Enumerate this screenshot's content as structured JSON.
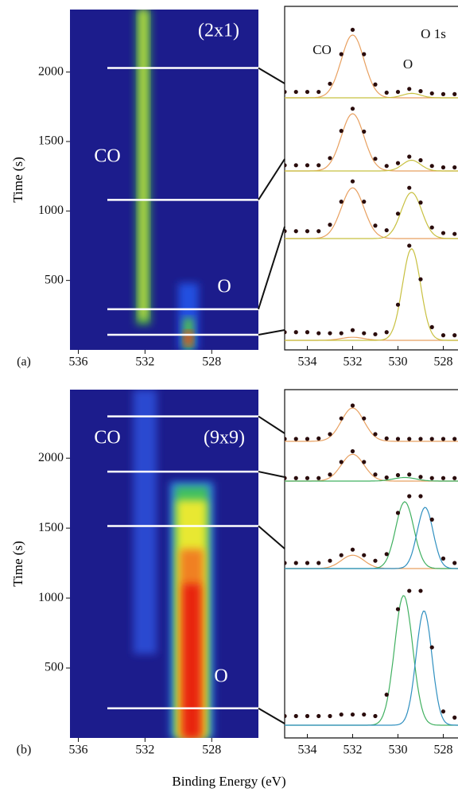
{
  "figure": {
    "xlabel": "Binding Energy (eV)"
  },
  "chart_data": [
    {
      "type": "heatmap",
      "label": "(a)",
      "ylabel": "Time (s)",
      "background": "#1c1c8c",
      "xlim": [
        536.5,
        525.2
      ],
      "xticks": [
        536,
        532,
        528
      ],
      "ylim": [
        0,
        2450
      ],
      "yticks": [
        500,
        1000,
        1500,
        2000
      ],
      "bands": [
        {
          "center": 532.1,
          "width": 0.9,
          "t0": 180,
          "t1": 2450,
          "color": "#3a9a50"
        },
        {
          "center": 532.1,
          "width": 0.45,
          "t0": 220,
          "t1": 2450,
          "color": "#c8e040"
        },
        {
          "center": 529.4,
          "width": 1.2,
          "t0": 0,
          "t1": 480,
          "color": "#2050e0"
        },
        {
          "center": 529.4,
          "width": 0.6,
          "t0": 0,
          "t1": 230,
          "color": "#50c050"
        },
        {
          "center": 529.4,
          "width": 0.4,
          "t0": 30,
          "t1": 140,
          "color": "#ff3010"
        }
      ],
      "markers": [
        2029,
        1080,
        293,
        109
      ],
      "annotations": [
        "(2x1)",
        "CO",
        "O"
      ]
    },
    {
      "type": "spectra",
      "xlim": [
        535.0,
        527.35
      ],
      "xticks": [
        534,
        532,
        530,
        528
      ],
      "x": [
        535,
        534.5,
        534,
        533.5,
        533,
        532.5,
        532,
        531.5,
        531,
        530.5,
        530,
        529.5,
        529,
        528.5,
        528,
        527.5
      ],
      "annotations": [
        "CO",
        "O",
        "O  1s"
      ],
      "spectra": [
        {
          "values": [
            0.08,
            0.08,
            0.08,
            0.08,
            0.19,
            0.59,
            0.92,
            0.59,
            0.18,
            0.07,
            0.08,
            0.12,
            0.09,
            0.06,
            0.05,
            0.05
          ],
          "components": [
            {
              "center": 532,
              "height": 0.85,
              "width": 0.5,
              "color": "#e8a060"
            },
            {
              "center": 529.4,
              "height": 0.06,
              "width": 0.4,
              "color": "#c8c040"
            }
          ]
        },
        {
          "values": [
            0.08,
            0.08,
            0.08,
            0.08,
            0.18,
            0.56,
            0.87,
            0.55,
            0.17,
            0.07,
            0.11,
            0.2,
            0.15,
            0.07,
            0.05,
            0.05
          ],
          "components": [
            {
              "center": 532,
              "height": 0.8,
              "width": 0.5,
              "color": "#e8a060"
            },
            {
              "center": 529.4,
              "height": 0.15,
              "width": 0.4,
              "color": "#c8c040"
            }
          ]
        },
        {
          "values": [
            0.08,
            0.08,
            0.08,
            0.08,
            0.15,
            0.4,
            0.62,
            0.4,
            0.14,
            0.09,
            0.27,
            0.55,
            0.39,
            0.12,
            0.06,
            0.05
          ],
          "components": [
            {
              "center": 532,
              "height": 0.55,
              "width": 0.5,
              "color": "#e8a060"
            },
            {
              "center": 529.4,
              "height": 0.5,
              "width": 0.45,
              "color": "#c8c040"
            }
          ]
        },
        {
          "values": [
            0.08,
            0.08,
            0.08,
            0.07,
            0.07,
            0.07,
            0.1,
            0.07,
            0.06,
            0.08,
            0.35,
            0.93,
            0.6,
            0.13,
            0.05,
            0.05
          ],
          "components": [
            {
              "center": 532,
              "height": 0.03,
              "width": 0.5,
              "color": "#e8a060"
            },
            {
              "center": 529.4,
              "height": 0.9,
              "width": 0.4,
              "color": "#c8c040"
            }
          ]
        }
      ]
    },
    {
      "type": "heatmap",
      "label": "(b)",
      "ylabel": "Time (s)",
      "background": "#1c1c8c",
      "xlim": [
        536.5,
        525.2
      ],
      "xticks": [
        536,
        532,
        528
      ],
      "ylim": [
        0,
        2490
      ],
      "yticks": [
        500,
        1000,
        1500,
        2000
      ],
      "bands": [
        {
          "center": 532,
          "width": 1.4,
          "t0": 600,
          "t1": 2490,
          "color": "#2a48d0"
        },
        {
          "center": 529.2,
          "width": 2.6,
          "t0": 0,
          "t1": 1830,
          "color": "#2a7ae0"
        },
        {
          "center": 529.2,
          "width": 2.0,
          "t0": 0,
          "t1": 1800,
          "color": "#40c060"
        },
        {
          "center": 529.2,
          "width": 1.8,
          "t0": 0,
          "t1": 1700,
          "color": "#e8e830"
        },
        {
          "center": 529.2,
          "width": 1.4,
          "t0": 0,
          "t1": 1350,
          "color": "#f08020"
        },
        {
          "center": 529.2,
          "width": 1.0,
          "t0": 0,
          "t1": 1100,
          "color": "#e82010"
        }
      ],
      "markers": [
        2299,
        1904,
        1515,
        212
      ],
      "annotations": [
        "CO",
        "(9x9)",
        "O"
      ]
    },
    {
      "type": "spectra",
      "xlim": [
        535.0,
        527.35
      ],
      "xticks": [
        534,
        532,
        530,
        528
      ],
      "x": [
        535,
        534.5,
        534,
        533.5,
        533,
        532.5,
        532,
        531.5,
        531,
        530.5,
        530,
        529.5,
        529,
        528.5,
        528,
        527.5
      ],
      "spectra": [
        {
          "values": [
            0.05,
            0.05,
            0.05,
            0.06,
            0.15,
            0.48,
            0.75,
            0.48,
            0.15,
            0.06,
            0.05,
            0.05,
            0.05,
            0.05,
            0.05,
            0.05
          ],
          "components": [
            {
              "center": 532,
              "height": 0.7,
              "width": 0.5,
              "color": "#e8a060"
            }
          ]
        },
        {
          "values": [
            0.05,
            0.05,
            0.05,
            0.05,
            0.11,
            0.32,
            0.5,
            0.32,
            0.11,
            0.06,
            0.1,
            0.11,
            0.07,
            0.05,
            0.05,
            0.05
          ],
          "components": [
            {
              "center": 532,
              "height": 0.45,
              "width": 0.5,
              "color": "#e8a060"
            },
            {
              "center": 529.7,
              "height": 0.06,
              "width": 0.5,
              "color": "#40b060"
            }
          ]
        },
        {
          "values": [
            0.05,
            0.05,
            0.05,
            0.05,
            0.07,
            0.12,
            0.17,
            0.12,
            0.07,
            0.13,
            0.5,
            0.65,
            0.65,
            0.44,
            0.09,
            0.05
          ],
          "components": [
            {
              "center": 532,
              "height": 0.12,
              "width": 0.5,
              "color": "#e8a060"
            },
            {
              "center": 529.7,
              "height": 0.6,
              "width": 0.4,
              "color": "#40b060"
            },
            {
              "center": 528.8,
              "height": 0.55,
              "width": 0.35,
              "color": "#3090c0"
            }
          ]
        },
        {
          "values": [
            0.06,
            0.06,
            0.06,
            0.06,
            0.06,
            0.07,
            0.07,
            0.07,
            0.06,
            0.2,
            0.76,
            0.88,
            0.88,
            0.51,
            0.09,
            0.05
          ],
          "components": [
            {
              "center": 529.75,
              "height": 0.85,
              "width": 0.4,
              "color": "#40b060"
            },
            {
              "center": 528.85,
              "height": 0.75,
              "width": 0.35,
              "color": "#3090c0"
            }
          ]
        }
      ]
    }
  ]
}
